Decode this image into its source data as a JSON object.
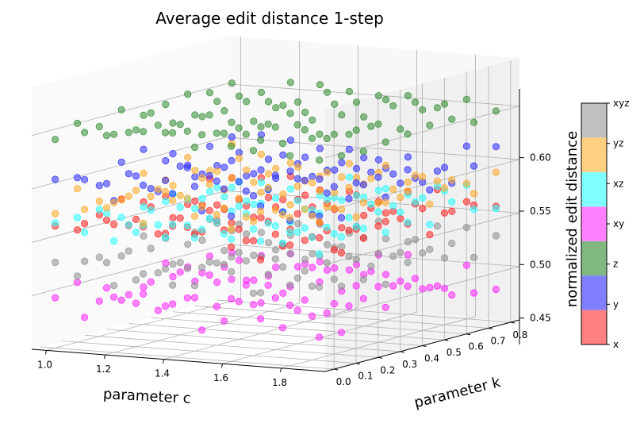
{
  "chart_data": {
    "type": "scatter",
    "projection": "3d",
    "title": "Average edit distance 1-step",
    "xlabel": "parameter c",
    "ylabel": "parameter k",
    "zlabel": "",
    "x_ticks": [
      "1.0",
      "1.2",
      "1.4",
      "1.6",
      "1.8"
    ],
    "y_ticks": [
      "0.0",
      "0.1",
      "0.2",
      "0.3",
      "0.4",
      "0.5",
      "0.6",
      "0.7",
      "0.8"
    ],
    "z_ticks": [
      "0.45",
      "0.50",
      "0.55",
      "0.60"
    ],
    "xlim": [
      0.95,
      1.95
    ],
    "ylim": [
      -0.04,
      0.84
    ],
    "zlim": [
      0.4,
      0.645
    ],
    "grid": true,
    "colorbar": {
      "label": "normalized edit distance",
      "categories": [
        "x",
        "y",
        "z",
        "xy",
        "xz",
        "yz",
        "xyz"
      ],
      "colors": [
        "#ff8080",
        "#8080ff",
        "#80b880",
        "#ff80ff",
        "#80ffff",
        "#ffd080",
        "#c0c0c0"
      ]
    },
    "series": [
      {
        "name": "x",
        "color": "#ff2020",
        "mean": 0.51,
        "spread": 0.013
      },
      {
        "name": "y",
        "color": "#2a2aff",
        "mean": 0.548,
        "spread": 0.016
      },
      {
        "name": "z",
        "color": "#2e8b2e",
        "mean": 0.6,
        "spread": 0.01
      },
      {
        "name": "xy",
        "color": "#ff20ff",
        "mean": 0.443,
        "spread": 0.016
      },
      {
        "name": "xz",
        "color": "#20ffff",
        "mean": 0.515,
        "spread": 0.011
      },
      {
        "name": "yz",
        "color": "#ffa820",
        "mean": 0.535,
        "spread": 0.013
      },
      {
        "name": "xyz",
        "color": "#8c8c8c",
        "mean": 0.472,
        "spread": 0.014
      }
    ],
    "grid_c": [
      1.0,
      1.1,
      1.2,
      1.3,
      1.4,
      1.5,
      1.6,
      1.7,
      1.8,
      1.9
    ],
    "grid_k": [
      0.0,
      0.1,
      0.2,
      0.3,
      0.4,
      0.5,
      0.6,
      0.7,
      0.8
    ]
  }
}
